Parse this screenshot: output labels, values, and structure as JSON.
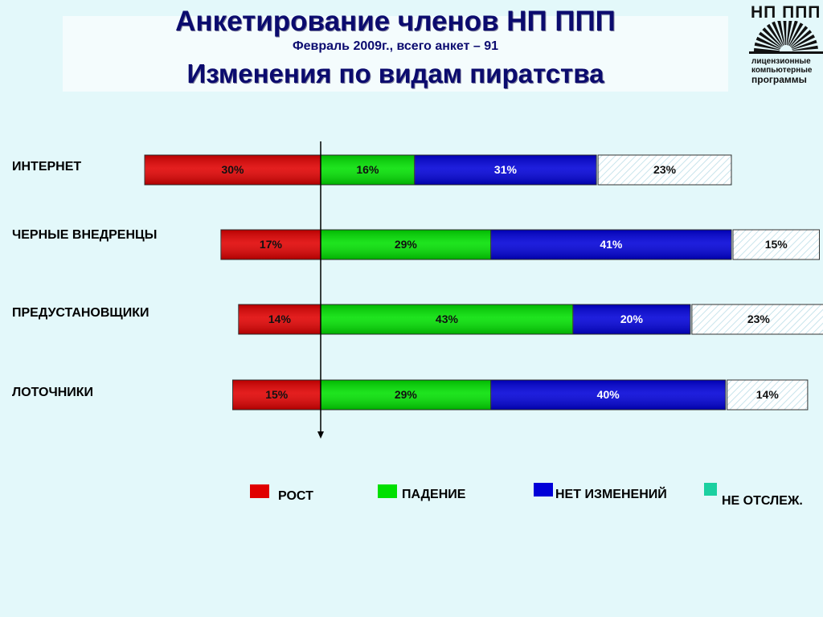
{
  "header": {
    "title_line1": "Анкетирование членов НП ППП",
    "subtitle": "Февраль 2009г., всего анкет – 91",
    "title_line2": "Изменения по видам пиратства"
  },
  "logo": {
    "top_text": "НП ППП",
    "sub_lines": [
      "лицензионные",
      "компьютерные",
      "программы"
    ]
  },
  "colors": {
    "growth": "#e00000",
    "decline": "#00e000",
    "no_change": "#0000d8",
    "not_tracked": "#ffffff",
    "not_tracked_legend": "#1bd0a0"
  },
  "chart_data": {
    "type": "bar",
    "stacked": true,
    "orientation": "horizontal",
    "categories": [
      "ИНТЕРНЕТ",
      "ЧЕРНЫЕ ВНЕДРЕНЦЫ",
      "ПРЕДУСТАНОВЩИКИ",
      "ЛОТОЧНИКИ"
    ],
    "series": [
      {
        "name": "РОСТ",
        "values": [
          30,
          17,
          14,
          15
        ],
        "labels": [
          "30%",
          "17%",
          "14%",
          "15%"
        ]
      },
      {
        "name": "ПАДЕНИЕ",
        "values": [
          16,
          29,
          43,
          29
        ],
        "labels": [
          "16%",
          "29%",
          "43%",
          "29%"
        ]
      },
      {
        "name": "НЕТ ИЗМЕНЕНИЙ",
        "values": [
          31,
          41,
          20,
          40
        ],
        "labels": [
          "31%",
          "41%",
          "20%",
          "40%"
        ]
      },
      {
        "name": "НЕ ОТСЛЕЖ.",
        "values": [
          23,
          15,
          23,
          14
        ],
        "labels": [
          "23%",
          "15%",
          "23%",
          "14%"
        ]
      }
    ],
    "baseline": "between РОСТ and ПАДЕНИЕ",
    "legend_position": "bottom"
  }
}
